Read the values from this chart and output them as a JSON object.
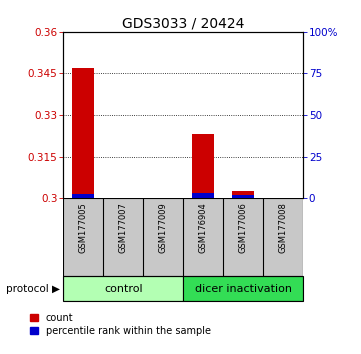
{
  "title": "GDS3033 / 20424",
  "samples": [
    "GSM177005",
    "GSM177007",
    "GSM177009",
    "GSM176904",
    "GSM177006",
    "GSM177008"
  ],
  "red_values": [
    0.347,
    0.3002,
    0.3002,
    0.323,
    0.3025,
    0.3002
  ],
  "blue_values": [
    0.3015,
    0.3002,
    0.3002,
    0.3018,
    0.3012,
    0.3002
  ],
  "ylim_left": [
    0.3,
    0.36
  ],
  "yticks_left": [
    0.3,
    0.315,
    0.33,
    0.345,
    0.36
  ],
  "yticks_right": [
    0,
    25,
    50,
    75,
    100
  ],
  "ytick_right_labels": [
    "0",
    "25",
    "50",
    "75",
    "100%"
  ],
  "groups": [
    {
      "label": "control",
      "start": 0,
      "end": 3,
      "color": "#b3ffb3"
    },
    {
      "label": "dicer inactivation",
      "start": 3,
      "end": 6,
      "color": "#33dd55"
    }
  ],
  "protocol_label": "protocol",
  "legend_items": [
    {
      "color": "#cc0000",
      "label": "count"
    },
    {
      "color": "#0000cc",
      "label": "percentile rank within the sample"
    }
  ],
  "bar_width": 0.55,
  "bg_color": "#ffffff",
  "left_axis_color": "#cc0000",
  "right_axis_color": "#0000cc",
  "title_fontsize": 10,
  "tick_fontsize": 7.5,
  "sample_fontsize": 6.0,
  "group_fontsize": 8
}
